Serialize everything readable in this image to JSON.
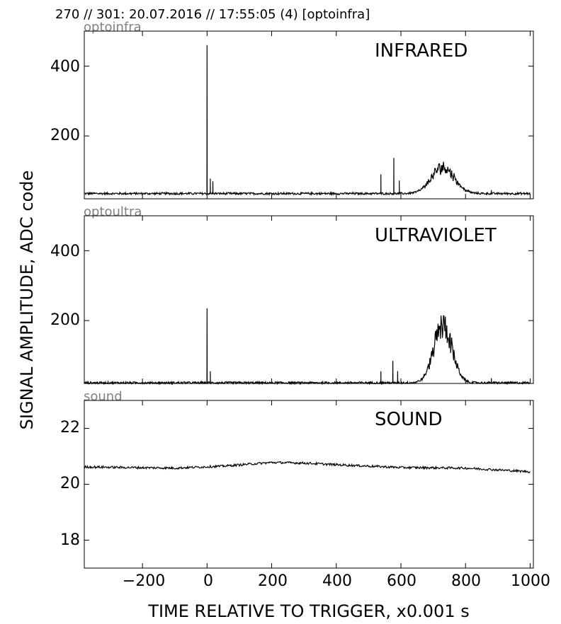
{
  "header": {
    "title": "270 // 301:   20.07.2016 // 17:55:05 (4)  [optoinfra]"
  },
  "axes": {
    "ylabel": "SIGNAL AMPLITUDE,  ADC code",
    "xlabel": "TIME RELATIVE TO TRIGGER,   x0.001 s"
  },
  "chart_data": [
    {
      "type": "line",
      "subtitle": "optoinfra",
      "name_label": "INFRARED",
      "xlim": [
        -380,
        1010
      ],
      "ylim": [
        20,
        500
      ],
      "yticks": [
        200,
        400
      ],
      "ytick_labels": [
        "200",
        "400"
      ],
      "xticks": [
        -200,
        0,
        200,
        400,
        600,
        800,
        1000
      ],
      "grid": false,
      "baseline": 35,
      "spikes": [
        [
          0,
          460
        ],
        [
          10,
          78
        ],
        [
          18,
          70
        ],
        [
          538,
          90
        ],
        [
          578,
          137
        ],
        [
          595,
          72
        ],
        [
          880,
          45
        ]
      ],
      "peak": {
        "center": 730,
        "amplitude": 95,
        "width": 35
      }
    },
    {
      "type": "line",
      "subtitle": "optoultra",
      "name_label": "ULTRAVIOLET",
      "xlim": [
        -380,
        1010
      ],
      "ylim": [
        20,
        500
      ],
      "yticks": [
        200,
        400
      ],
      "ytick_labels": [
        "200",
        "400"
      ],
      "xticks": [
        -200,
        0,
        200,
        400,
        600,
        800,
        1000
      ],
      "grid": false,
      "baseline": 22,
      "spikes": [
        [
          0,
          235
        ],
        [
          10,
          55
        ],
        [
          538,
          55
        ],
        [
          575,
          85
        ],
        [
          590,
          55
        ],
        [
          880,
          35
        ]
      ],
      "peak": {
        "center": 730,
        "amplitude": 205,
        "width": 28
      }
    },
    {
      "type": "line",
      "subtitle": "sound",
      "name_label": "SOUND",
      "xlim": [
        -380,
        1010
      ],
      "ylim": [
        17,
        23
      ],
      "yticks": [
        18,
        20,
        22
      ],
      "ytick_labels": [
        "18",
        "20",
        "22"
      ],
      "xticks": [
        -200,
        0,
        200,
        400,
        600,
        800,
        1000
      ],
      "xtick_labels": [
        "−200",
        "0",
        "200",
        "400",
        "600",
        "800",
        "1000"
      ],
      "grid": false,
      "trend": [
        [
          -380,
          20.62
        ],
        [
          -100,
          20.58
        ],
        [
          50,
          20.65
        ],
        [
          200,
          20.78
        ],
        [
          300,
          20.76
        ],
        [
          400,
          20.7
        ],
        [
          600,
          20.6
        ],
        [
          800,
          20.58
        ],
        [
          1000,
          20.45
        ]
      ]
    }
  ]
}
